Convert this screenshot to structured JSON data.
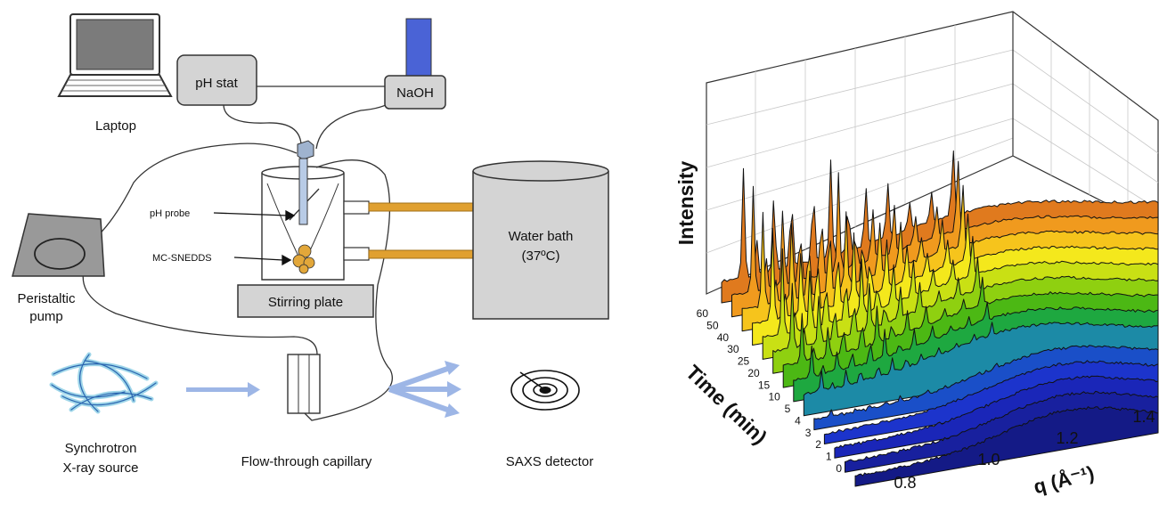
{
  "setup": {
    "labels": {
      "laptop": "Laptop",
      "ph_stat": "pH stat",
      "naoh": "NaOH",
      "ph_probe": "pH probe",
      "mc_snedds": "MC-SNEDDS",
      "stirring_plate": "Stirring plate",
      "water_bath_line1": "Water bath",
      "water_bath_line2": "(37ºC)",
      "pump_line1": "Peristaltic",
      "pump_line2": "pump",
      "source_line1": "Synchrotron",
      "source_line2": "X-ray source",
      "capillary": "Flow-through capillary",
      "detector": "SAXS detector"
    },
    "colors": {
      "naoh_reservoir": "#4a63d6",
      "tubing": "#e0a030",
      "arrow": "#9db6e6",
      "box_fill": "#d4d4d4",
      "laptop_screen": "#777777"
    }
  },
  "chart_data": {
    "type": "waterfall-3d",
    "zlabel": "Intensity",
    "ylabel": "Time (min)",
    "xlabel": "q (Å⁻¹)",
    "x_ticks": [
      "0.8",
      "1.0",
      "1.2",
      "1.4"
    ],
    "time_ticks": [
      "60",
      "50",
      "40",
      "30",
      "25",
      "20",
      "15",
      "10",
      "5",
      "4",
      "3",
      "2",
      "1",
      "0"
    ],
    "series_colors": [
      "#e07a1e",
      "#f09a1e",
      "#f6c41c",
      "#f4e81c",
      "#c9e014",
      "#8fd010",
      "#4cb814",
      "#1ea840",
      "#1c8aa6",
      "#1a4fc8",
      "#1c34cc",
      "#1a26b8",
      "#18209e",
      "#141a86"
    ],
    "grid": "on"
  }
}
